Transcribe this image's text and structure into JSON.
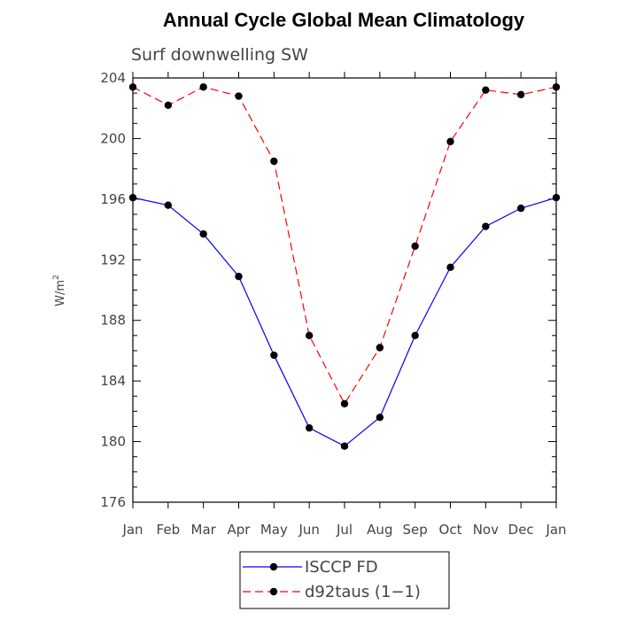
{
  "chart_data": {
    "type": "line",
    "title": "Annual Cycle Global Mean Climatology",
    "subtitle": "Surf downwelling SW",
    "xlabel": "",
    "ylabel": "W/m",
    "ylabel_superscript": "2",
    "categories": [
      "Jan",
      "Feb",
      "Mar",
      "Apr",
      "May",
      "Jun",
      "Jul",
      "Aug",
      "Sep",
      "Oct",
      "Nov",
      "Dec",
      "Jan"
    ],
    "ylim": [
      176,
      204
    ],
    "yticks": [
      176,
      180,
      184,
      188,
      192,
      196,
      200,
      204
    ],
    "series": [
      {
        "name": "ISCCP FD",
        "color": "#0000ff",
        "dash": "solid",
        "values": [
          196.1,
          195.6,
          193.7,
          190.9,
          185.7,
          180.9,
          179.7,
          181.6,
          187.0,
          191.5,
          194.2,
          195.4,
          196.1
        ]
      },
      {
        "name": "d92taus (1−1)",
        "color": "#ff0000",
        "dash": "dashed",
        "values": [
          203.4,
          202.2,
          203.4,
          202.8,
          198.5,
          187.0,
          182.5,
          186.2,
          192.9,
          199.8,
          203.2,
          202.9,
          203.4
        ]
      }
    ]
  }
}
